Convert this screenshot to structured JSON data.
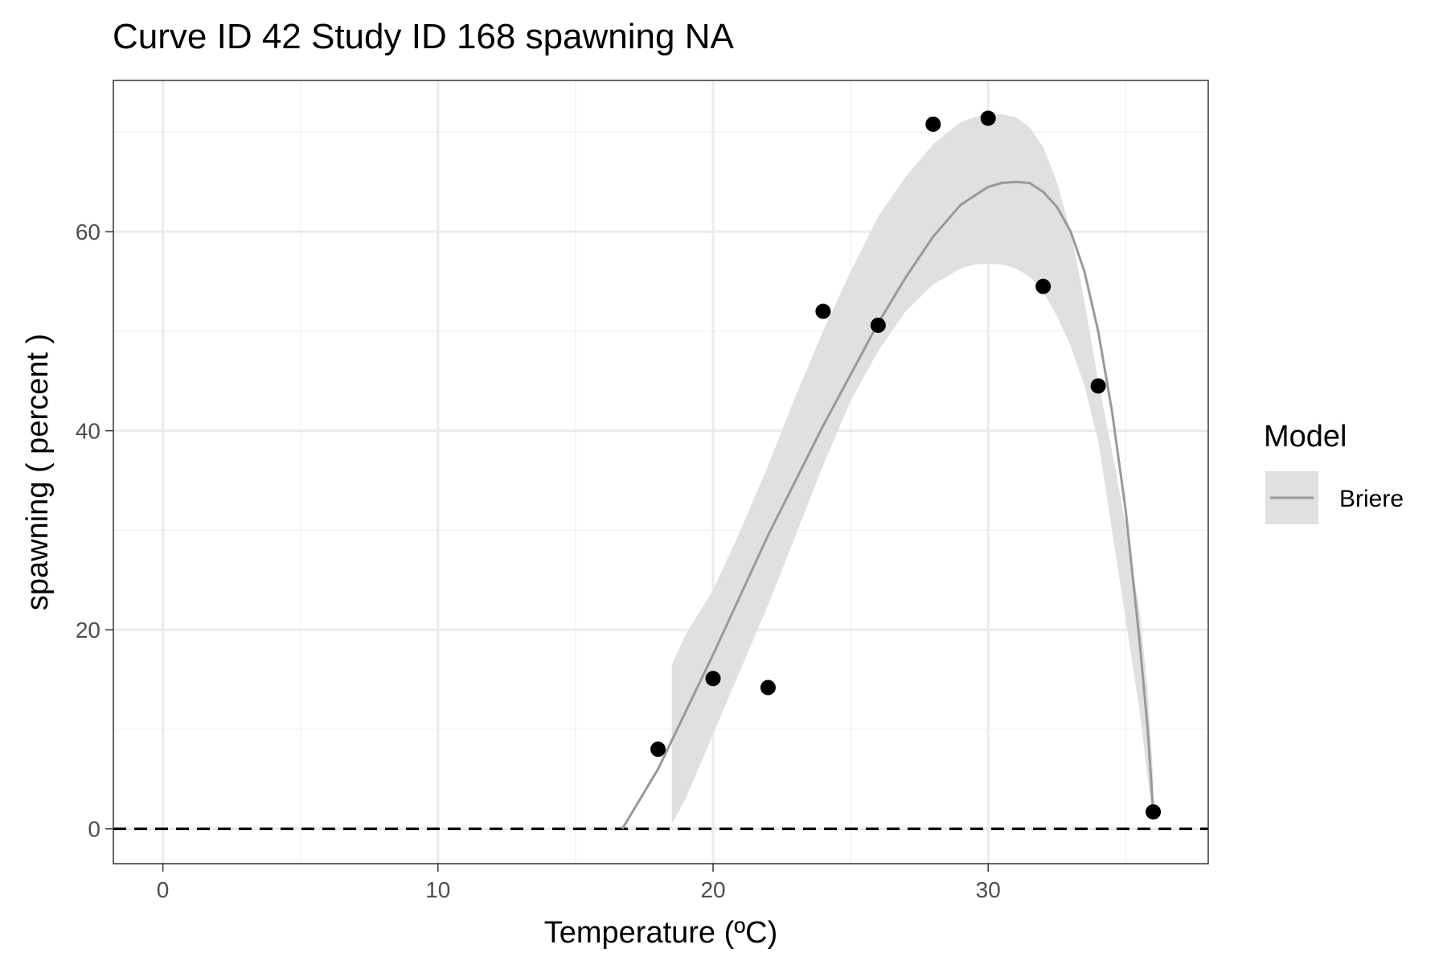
{
  "chart_data": {
    "type": "scatter",
    "title": "Curve ID 42 Study ID 168 spawning NA",
    "xlabel": "Temperature (ºC)",
    "ylabel": "spawning ( percent )",
    "xlim": [
      -1.8,
      38.0
    ],
    "ylim": [
      -3.5,
      75.2
    ],
    "x_ticks": [
      0,
      10,
      20,
      30
    ],
    "x_tick_labels": [
      "0",
      "10",
      "20",
      "30"
    ],
    "y_ticks": [
      0,
      20,
      40,
      60
    ],
    "y_tick_labels": [
      "0",
      "20",
      "40",
      "60"
    ],
    "grid": true,
    "reference_line": {
      "y": 0,
      "style": "dashed"
    },
    "points": {
      "x": [
        18,
        20,
        22,
        24,
        26,
        28,
        30,
        32,
        34,
        36
      ],
      "y": [
        8.0,
        15.1,
        14.2,
        52.0,
        50.6,
        70.8,
        71.4,
        54.5,
        44.5,
        1.7
      ]
    },
    "series": [
      {
        "name": "Briere",
        "type": "line",
        "x": [
          16.7,
          18,
          20,
          22,
          24,
          26,
          27,
          28,
          29,
          30,
          30.5,
          31,
          31.5,
          32,
          32.5,
          33,
          33.5,
          34,
          34.5,
          35,
          35.5,
          35.8,
          36
        ],
        "y": [
          0,
          6.0,
          17.5,
          29.5,
          40.5,
          50.8,
          55.4,
          59.5,
          62.7,
          64.5,
          64.9,
          65.0,
          64.9,
          64.0,
          62.5,
          60.0,
          56.0,
          50.0,
          42.0,
          32.0,
          19.0,
          10.0,
          1.7
        ],
        "ribbon_x": [
          18.5,
          19,
          20,
          21,
          22,
          23,
          24,
          25,
          26,
          27,
          28,
          29,
          29.5,
          30,
          30.5,
          31,
          31.5,
          32,
          32.5,
          33,
          33.5,
          34,
          34.5,
          35,
          35.5,
          35.8,
          36
        ],
        "ribbon_lower": [
          0.5,
          3.0,
          9.5,
          16.0,
          22.5,
          29.5,
          36.5,
          43.0,
          48.0,
          52.0,
          54.7,
          56.3,
          56.7,
          56.8,
          56.7,
          56.3,
          55.5,
          54.0,
          51.5,
          48.5,
          44.5,
          39.0,
          30.0,
          21.0,
          12.0,
          5.0,
          0.5
        ],
        "ribbon_upper": [
          16.5,
          19.5,
          24.0,
          30.0,
          36.5,
          43.5,
          50.0,
          56.0,
          61.5,
          65.5,
          68.8,
          71.0,
          71.5,
          71.8,
          71.8,
          71.5,
          70.5,
          68.5,
          65.0,
          60.0,
          53.0,
          45.0,
          38.0,
          30.5,
          22.0,
          14.0,
          5.0
        ]
      }
    ],
    "legend": {
      "title": "Model",
      "placement": "right",
      "entries": [
        "Briere"
      ]
    },
    "colors": {
      "points": "#000000",
      "line": "#999999",
      "ribbon": "#e0e0e0",
      "grid_major": "#ebebeb",
      "grid_minor": "#f2f2f2",
      "panel_border": "#333333",
      "reference": "#000000"
    }
  }
}
